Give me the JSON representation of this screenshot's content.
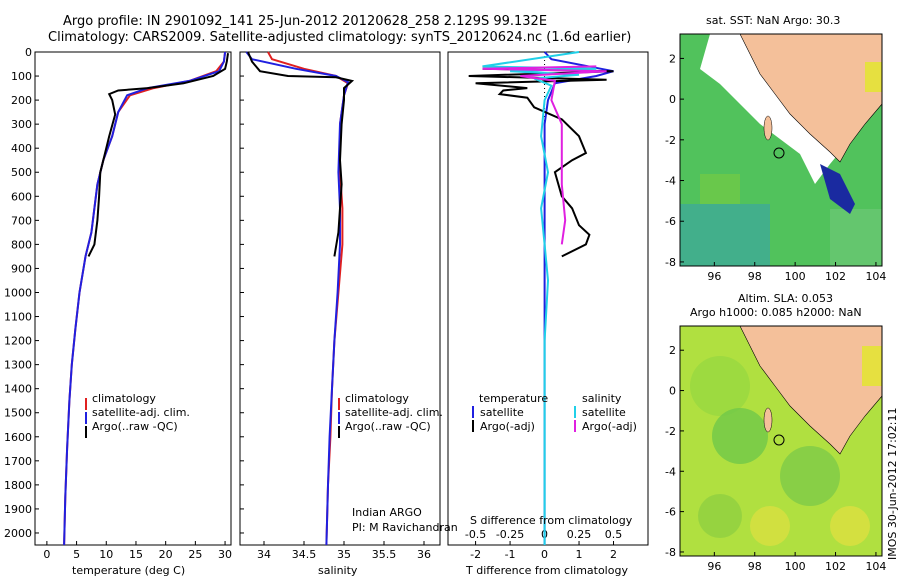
{
  "header": {
    "title_line1": "Argo profile: IN 2901092_141 25-Jun-2012 20120628_258 2.129S 99.132E",
    "title_line2": "Climatology: CARS2009. Satellite-adjusted climatology: synTS_20120624.nc (1.6d earlier)"
  },
  "colors": {
    "climatology": "#e02020",
    "satellite": "#2020e0",
    "argo": "#000000",
    "sat_salinity": "#20d0e8",
    "argo_salinity": "#e020e0",
    "land": "#f4c09a"
  },
  "chart_data": [
    {
      "type": "line",
      "title": "",
      "xlabel": "temperature (deg C)",
      "ylabel": "",
      "xlim": [
        -2,
        31
      ],
      "ylim": [
        2050,
        0
      ],
      "xticks": [
        0,
        5,
        10,
        15,
        20,
        25,
        30
      ],
      "yticks": [
        0,
        100,
        200,
        300,
        400,
        500,
        600,
        700,
        800,
        900,
        1000,
        1100,
        1200,
        1300,
        1400,
        1500,
        1600,
        1700,
        1800,
        1900,
        2000
      ],
      "legend": [
        "climatology",
        "satellite-adj. clim.",
        "Argo(..raw -QC)"
      ],
      "series": [
        {
          "name": "climatology",
          "color": "#e02020",
          "points": [
            [
              30,
              0
            ],
            [
              29.8,
              40
            ],
            [
              28.5,
              80
            ],
            [
              24,
              120
            ],
            [
              18,
              150
            ],
            [
              14,
              180
            ],
            [
              12,
              250
            ],
            [
              11,
              350
            ],
            [
              9.5,
              450
            ],
            [
              8.5,
              550
            ],
            [
              8,
              650
            ],
            [
              7.5,
              750
            ],
            [
              6.5,
              850
            ],
            [
              5.5,
              1000
            ],
            [
              4.8,
              1150
            ],
            [
              4.2,
              1300
            ],
            [
              3.8,
              1450
            ],
            [
              3.4,
              1650
            ],
            [
              3.1,
              1850
            ],
            [
              2.9,
              2050
            ]
          ]
        },
        {
          "name": "satellite-adj. clim.",
          "color": "#2020e0",
          "points": [
            [
              30,
              0
            ],
            [
              29.8,
              40
            ],
            [
              29,
              80
            ],
            [
              24,
              120
            ],
            [
              17,
              150
            ],
            [
              13.5,
              180
            ],
            [
              12,
              250
            ],
            [
              11,
              350
            ],
            [
              9.5,
              450
            ],
            [
              8.5,
              550
            ],
            [
              8,
              650
            ],
            [
              7.5,
              750
            ],
            [
              6.5,
              850
            ],
            [
              5.5,
              1000
            ],
            [
              4.8,
              1150
            ],
            [
              4.2,
              1300
            ],
            [
              3.8,
              1450
            ],
            [
              3.4,
              1650
            ],
            [
              3.1,
              1850
            ],
            [
              2.9,
              2050
            ]
          ]
        },
        {
          "name": "Argo(..raw -QC)",
          "color": "#000000",
          "points": [
            [
              30.5,
              5
            ],
            [
              30.3,
              40
            ],
            [
              30,
              70
            ],
            [
              28,
              100
            ],
            [
              23,
              130
            ],
            [
              17,
              150
            ],
            [
              12,
              160
            ],
            [
              10.5,
              175
            ],
            [
              11,
              200
            ],
            [
              11.5,
              260
            ],
            [
              10.5,
              350
            ],
            [
              9.5,
              450
            ],
            [
              9,
              500
            ],
            [
              8.8,
              600
            ],
            [
              8.5,
              700
            ],
            [
              8,
              800
            ],
            [
              7,
              850
            ]
          ]
        }
      ]
    },
    {
      "type": "line",
      "title": "",
      "xlabel": "salinity",
      "ylabel": "",
      "xlim": [
        33.7,
        36.2
      ],
      "ylim": [
        2050,
        0
      ],
      "xticks": [
        34,
        34.5,
        35,
        35.5,
        36
      ],
      "legend": [
        "climatology",
        "satellite-adj. clim.",
        "Argo(..raw -QC)"
      ],
      "annotations": [
        "Indian ARGO",
        "PI: M Ravichandran"
      ],
      "series": [
        {
          "name": "climatology",
          "color": "#e02020",
          "points": [
            [
              34.05,
              0
            ],
            [
              34.1,
              30
            ],
            [
              34.5,
              70
            ],
            [
              34.9,
              100
            ],
            [
              35.05,
              130
            ],
            [
              35.0,
              180
            ],
            [
              34.95,
              300
            ],
            [
              34.95,
              500
            ],
            [
              34.98,
              650
            ],
            [
              34.98,
              800
            ],
            [
              34.93,
              1000
            ],
            [
              34.88,
              1200
            ],
            [
              34.85,
              1400
            ],
            [
              34.83,
              1600
            ],
            [
              34.8,
              1800
            ],
            [
              34.78,
              2050
            ]
          ]
        },
        {
          "name": "satellite-adj. clim.",
          "color": "#2020e0",
          "points": [
            [
              33.78,
              0
            ],
            [
              33.85,
              30
            ],
            [
              34.4,
              70
            ],
            [
              34.9,
              100
            ],
            [
              35.05,
              125
            ],
            [
              35.0,
              180
            ],
            [
              34.95,
              300
            ],
            [
              34.93,
              500
            ],
            [
              34.95,
              650
            ],
            [
              34.95,
              800
            ],
            [
              34.92,
              1000
            ],
            [
              34.88,
              1200
            ],
            [
              34.85,
              1400
            ],
            [
              34.82,
              1600
            ],
            [
              34.8,
              1800
            ],
            [
              34.78,
              2050
            ]
          ]
        },
        {
          "name": "Argo(..raw -QC)",
          "color": "#000000",
          "points": [
            [
              33.8,
              0
            ],
            [
              33.85,
              40
            ],
            [
              33.95,
              80
            ],
            [
              34.3,
              100
            ],
            [
              34.9,
              105
            ],
            [
              35.1,
              120
            ],
            [
              35.0,
              150
            ],
            [
              35.0,
              200
            ],
            [
              34.97,
              300
            ],
            [
              34.95,
              450
            ],
            [
              34.97,
              550
            ],
            [
              34.95,
              650
            ],
            [
              34.93,
              750
            ],
            [
              34.88,
              850
            ]
          ]
        }
      ]
    },
    {
      "type": "line",
      "title": "",
      "xlabel": "T difference from climatology",
      "xlabel_top": "S difference from climatology",
      "xlim": [
        -2.8,
        3.0
      ],
      "ylim": [
        2050,
        0
      ],
      "xticks": [
        -2,
        -1,
        0,
        1,
        2
      ],
      "xtick_labels_top": [
        "-0.5",
        "-0.25",
        "0",
        "0.25",
        "0.5"
      ],
      "legend_titles": [
        "temperature",
        "salinity"
      ],
      "legend": [
        "satellite",
        "Argo(-adj)",
        "satellite",
        "Argo(-adj)"
      ],
      "series": [
        {
          "name": "satellite",
          "color": "#2020e0",
          "points": [
            [
              0,
              0
            ],
            [
              0.2,
              30
            ],
            [
              2.0,
              80
            ],
            [
              1.5,
              100
            ],
            [
              0.3,
              130
            ],
            [
              0.1,
              200
            ],
            [
              0,
              300
            ],
            [
              0,
              500
            ],
            [
              0,
              700
            ],
            [
              0,
              900
            ],
            [
              0,
              1200
            ],
            [
              0,
              1500
            ],
            [
              0,
              1800
            ],
            [
              0,
              2050
            ]
          ]
        },
        {
          "name": "Argo(-adj)",
          "color": "#000000",
          "points": [
            [
              -1.8,
              70
            ],
            [
              2.0,
              80
            ],
            [
              -2.2,
              100
            ],
            [
              1.8,
              115
            ],
            [
              -2.0,
              130
            ],
            [
              -0.5,
              150
            ],
            [
              -1.2,
              160
            ],
            [
              -1.3,
              175
            ],
            [
              -0.5,
              190
            ],
            [
              -0.3,
              230
            ],
            [
              0.5,
              280
            ],
            [
              1.0,
              350
            ],
            [
              1.2,
              420
            ],
            [
              0.8,
              450
            ],
            [
              0.3,
              500
            ],
            [
              0.5,
              600
            ],
            [
              0.8,
              650
            ],
            [
              1.0,
              720
            ],
            [
              1.3,
              760
            ],
            [
              1.2,
              800
            ],
            [
              0.5,
              850
            ]
          ]
        },
        {
          "name": "satellite",
          "color": "#20d0e8",
          "points": [
            [
              1.0,
              0
            ],
            [
              -1.8,
              60
            ],
            [
              1.5,
              70
            ],
            [
              -1.0,
              80
            ],
            [
              1.0,
              95
            ],
            [
              -0.3,
              110
            ],
            [
              0.2,
              140
            ],
            [
              0,
              200
            ],
            [
              -0.1,
              350
            ],
            [
              0.1,
              500
            ],
            [
              -0.1,
              650
            ],
            [
              0,
              800
            ],
            [
              0.1,
              950
            ],
            [
              0,
              1200
            ],
            [
              0,
              1500
            ],
            [
              0,
              1800
            ],
            [
              0,
              2050
            ]
          ]
        },
        {
          "name": "Argo(-adj)",
          "color": "#e020e0",
          "points": [
            [
              1.5,
              60
            ],
            [
              -1.8,
              70
            ],
            [
              1.8,
              80
            ],
            [
              -0.7,
              100
            ],
            [
              0.3,
              120
            ],
            [
              0.2,
              200
            ],
            [
              0.5,
              300
            ],
            [
              0.5,
              450
            ],
            [
              0.5,
              550
            ],
            [
              0.6,
              700
            ],
            [
              0.5,
              800
            ]
          ]
        }
      ]
    },
    {
      "type": "heatmap",
      "title": "sat. SST: NaN Argo: 30.3",
      "xlim": [
        94.3,
        104.3
      ],
      "ylim": [
        -8.2,
        3.2
      ],
      "xticks": [
        96,
        98,
        100,
        102,
        104
      ],
      "yticks": [
        2,
        0,
        -2,
        -4,
        -6,
        -8
      ],
      "point": {
        "lon": 99.13,
        "lat": -2.13
      }
    },
    {
      "type": "heatmap",
      "title": "Altim. SLA: 0.053",
      "subtitle": "Argo h1000: 0.085 h2000: NaN",
      "xlim": [
        94.3,
        104.3
      ],
      "ylim": [
        -8.2,
        3.2
      ],
      "xticks": [
        96,
        98,
        100,
        102,
        104
      ],
      "yticks": [
        2,
        0,
        -2,
        -4,
        -6,
        -8
      ],
      "point": {
        "lon": 99.13,
        "lat": -2.13
      }
    }
  ],
  "footer": {
    "stamp": "IMOS 30-Jun-2012 17:02:11"
  }
}
